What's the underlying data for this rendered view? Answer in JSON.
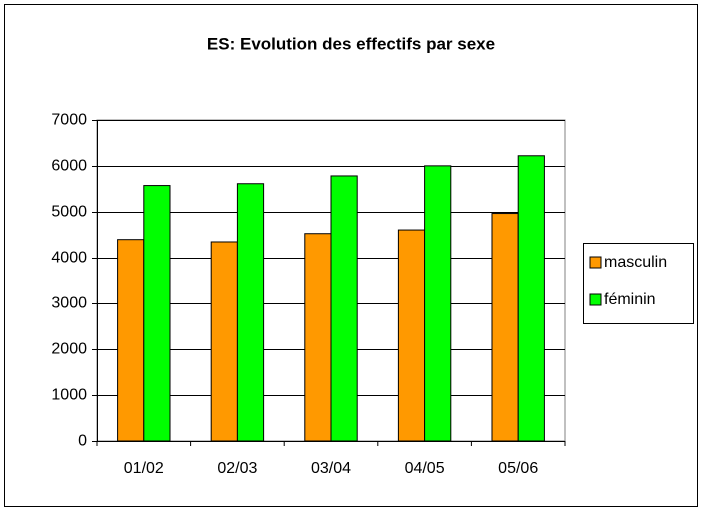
{
  "chart_data": {
    "type": "bar",
    "title": "ES: Evolution des effectifs par sexe",
    "categories": [
      "01/02",
      "02/03",
      "03/04",
      "04/05",
      "05/06"
    ],
    "series": [
      {
        "name": "masculin",
        "color": "#FF9900",
        "values": [
          4390,
          4340,
          4520,
          4600,
          4960
        ]
      },
      {
        "name": "féminin",
        "color": "#00FF00",
        "values": [
          5570,
          5610,
          5780,
          6000,
          6220
        ]
      }
    ],
    "ylim": [
      0,
      7000
    ],
    "yticks": [
      0,
      1000,
      2000,
      3000,
      4000,
      5000,
      6000,
      7000
    ],
    "grid": true,
    "legend": "right"
  }
}
